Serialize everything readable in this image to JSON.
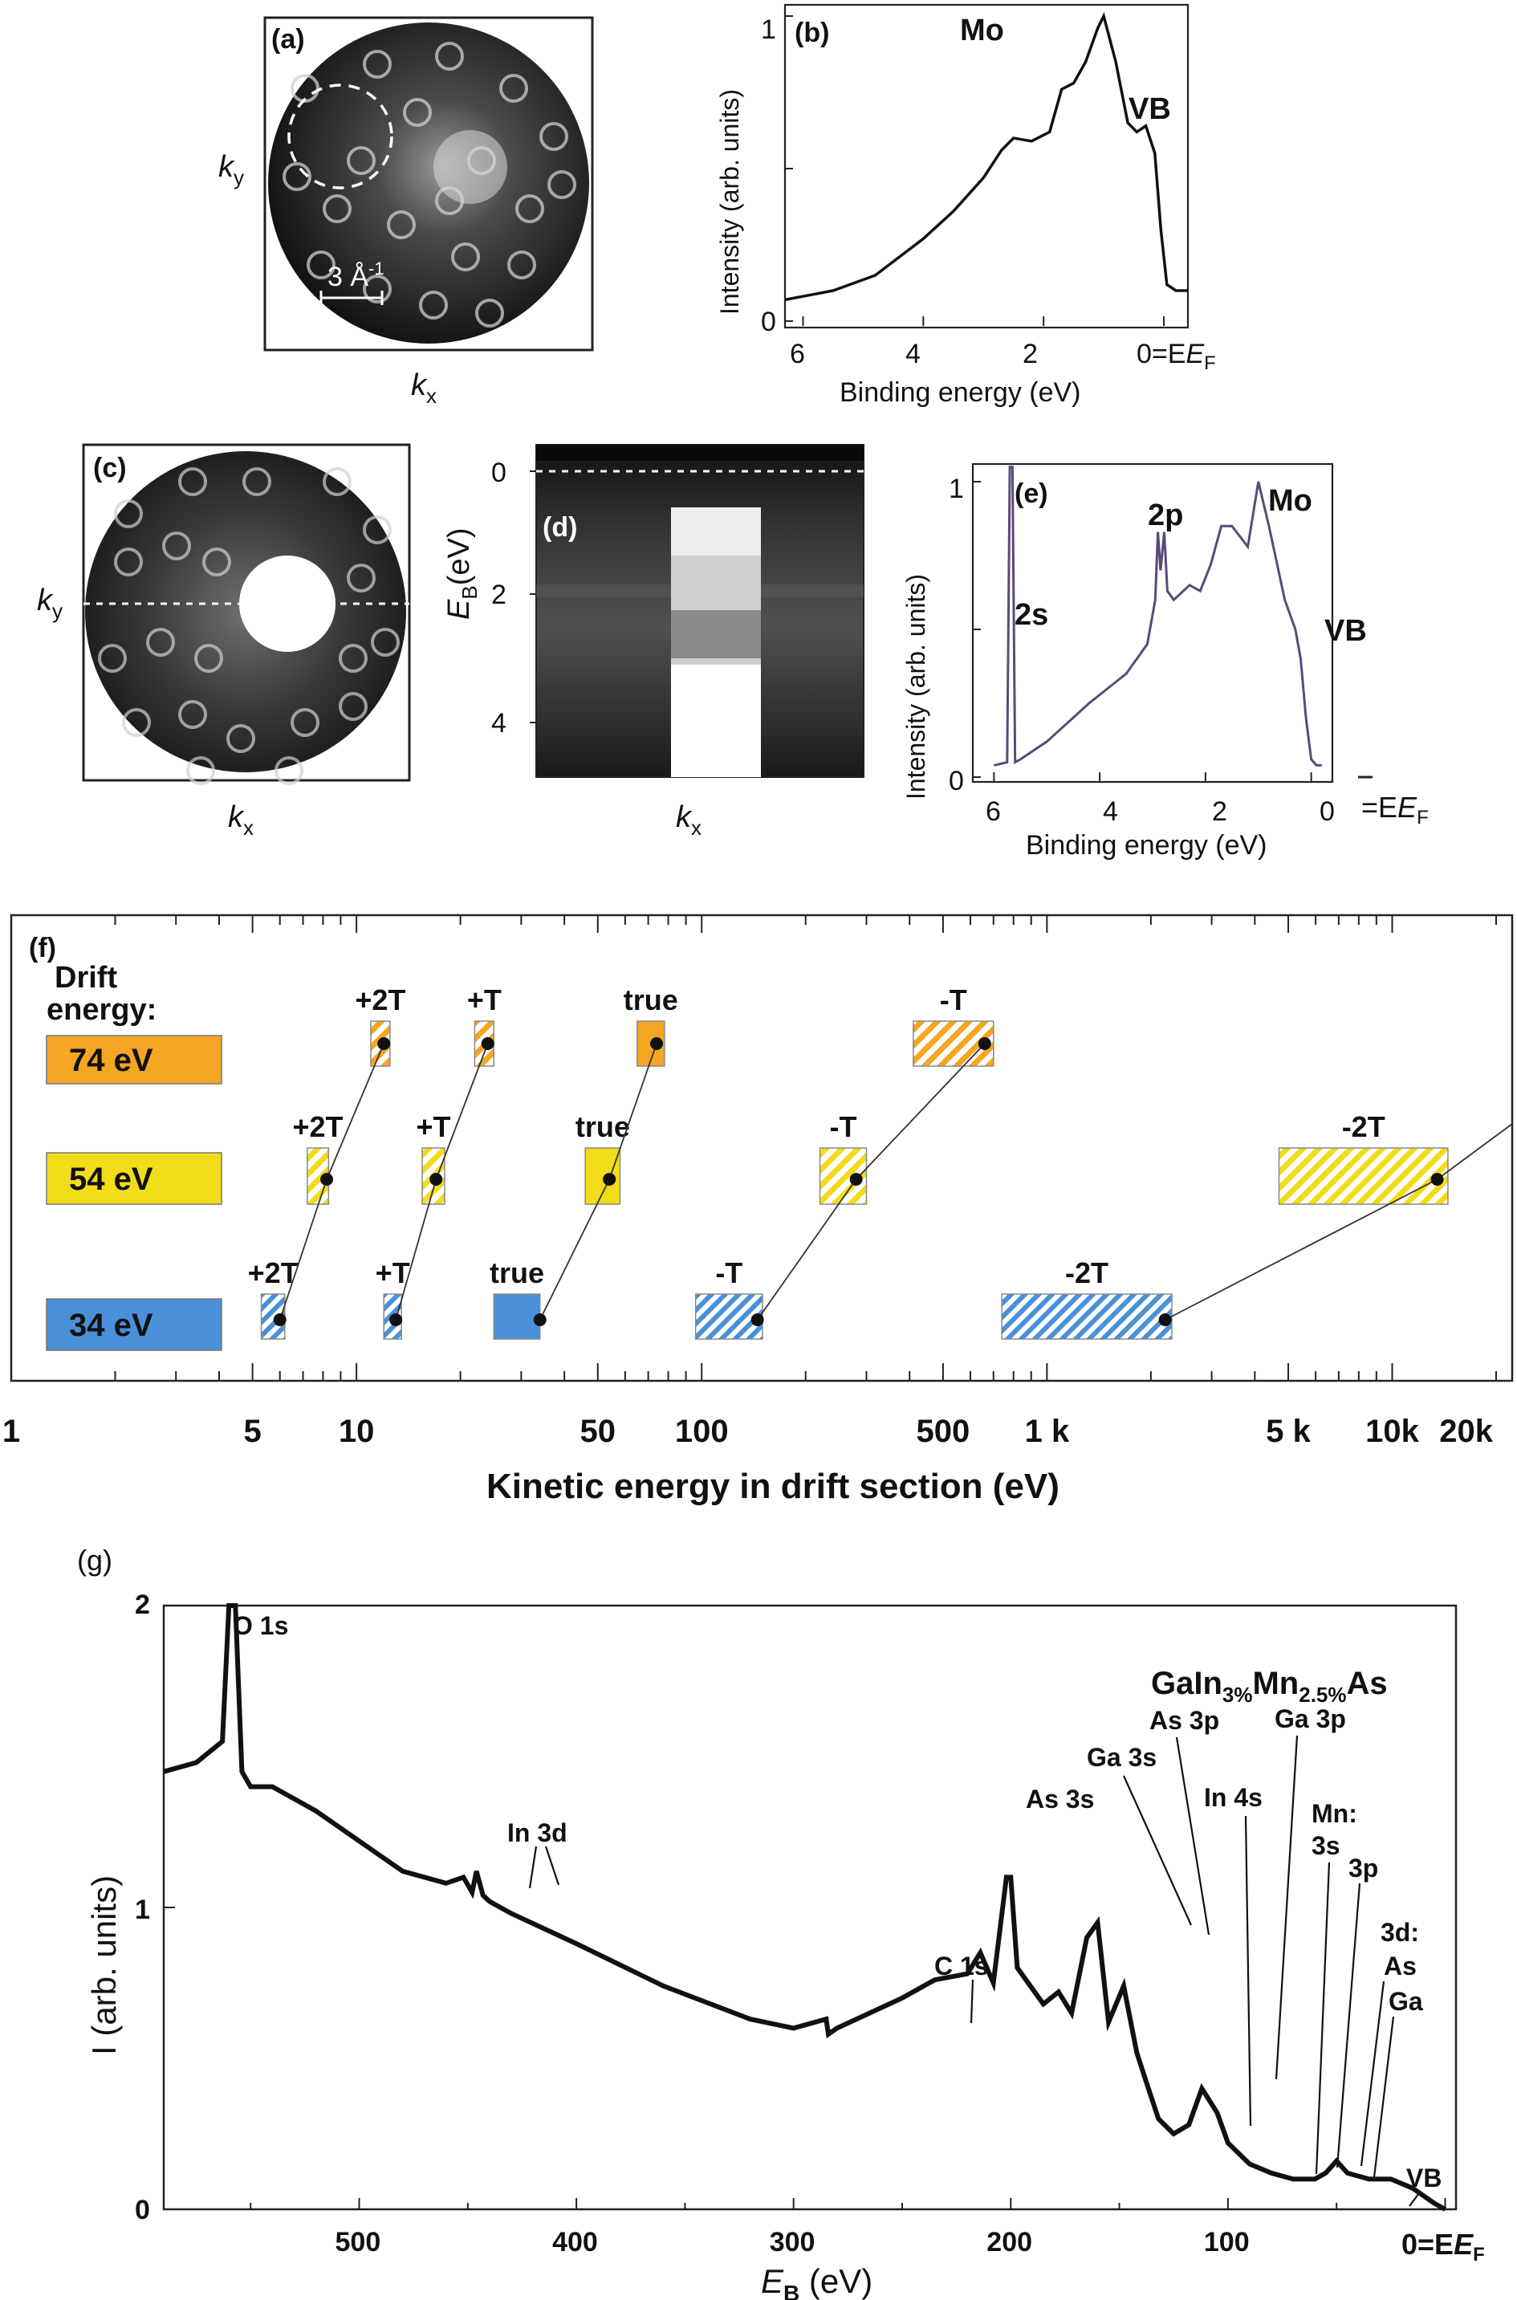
{
  "panels": {
    "a": {
      "label": "(a)",
      "kx": "k",
      "kx_sub": "x",
      "ky": "k",
      "ky_sub": "y",
      "scale": "3 Å",
      "scale_sup": "-1"
    },
    "b": {
      "label": "(b)",
      "peak_mo": "Mo",
      "peak_vb": "VB"
    },
    "c": {
      "label": "(c)",
      "kx": "k",
      "kx_sub": "x",
      "ky": "k",
      "ky_sub": "y"
    },
    "d": {
      "label": "(d)",
      "ylabel": "E",
      "ylabel_sub": "B",
      "ylabel_rest": "(eV)",
      "yticks": [
        "0",
        "2",
        "4"
      ],
      "xlabel": "k",
      "xlabel_sub": "x"
    },
    "e": {
      "label": "(e)",
      "peak_2s": "2s",
      "peak_2p": "2p",
      "peak_mo": "Mo",
      "peak_vb": "VB"
    },
    "f": {
      "label": "(f)",
      "drift_title_1": "Drift",
      "drift_title_2": "energy:",
      "xlabel": "Kinetic energy in drift section (eV)",
      "xticks": [
        "1",
        "5",
        "10",
        "50",
        "100",
        "500",
        "1 k",
        "5 k",
        "10k",
        "20k"
      ],
      "rows": [
        {
          "energy": "74 eV",
          "color": "#f5a623"
        },
        {
          "energy": "54 eV",
          "color": "#f2dc1a"
        },
        {
          "energy": "34 eV",
          "color": "#4a90d9"
        }
      ],
      "box_labels": {
        "p2": "+2T",
        "p1": "+T",
        "t": "true",
        "m1": "-T",
        "m2": "-2T"
      }
    },
    "g": {
      "label": "(g)",
      "ylabel": "I (arb. units)",
      "xlabel": "E",
      "xlabel_sub": "B",
      "xlabel_rest": " (eV)",
      "ef": "0=E",
      "ef_sub": "F",
      "formula": "GaIn",
      "formula_sub1": "3%",
      "formula_mid": "Mn",
      "formula_sub2": "2.5%",
      "formula_end": "As",
      "yticks": [
        "0",
        "1",
        "2"
      ],
      "xticks": [
        "500",
        "400",
        "300",
        "200",
        "100"
      ],
      "peaks": {
        "o1s": "O 1s",
        "in3d": "In 3d",
        "c1s": "C 1s",
        "as3s": "As 3s",
        "ga3s": "Ga 3s",
        "as3p": "As 3p",
        "in4s": "In 4s",
        "ga3p": "Ga 3p",
        "mn": "Mn:",
        "mn3s": "3s",
        "mn3p": "3p",
        "d3": "3d:",
        "as": "As",
        "ga": "Ga",
        "vb": "VB"
      }
    }
  },
  "shared": {
    "intensity_label": "Intensity (arb. units)",
    "binding_label": "Binding energy (eV)",
    "ef_text": "0=E",
    "ef_sub": "F",
    "ef_text_e": "=E",
    "b_xticks": [
      "6",
      "4",
      "2"
    ],
    "b_yticks": [
      "0",
      "1"
    ],
    "e_xticks": [
      "6",
      "4",
      "2",
      "0"
    ],
    "e_yticks": [
      "0",
      "1"
    ]
  },
  "chart_data": [
    {
      "type": "line",
      "panel": "b",
      "xlabel": "Binding energy (eV)",
      "ylabel": "Intensity (arb. units)",
      "xlim": [
        6.3,
        -0.4
      ],
      "ylim": [
        0,
        1
      ],
      "x": [
        6.3,
        5.5,
        4.8,
        4.0,
        3.5,
        3.0,
        2.7,
        2.5,
        2.2,
        1.9,
        1.7,
        1.5,
        1.3,
        1.1,
        1.0,
        0.8,
        0.6,
        0.45,
        0.3,
        0.15,
        0.05,
        -0.05,
        -0.2,
        -0.4
      ],
      "y": [
        0.07,
        0.1,
        0.15,
        0.27,
        0.36,
        0.47,
        0.56,
        0.6,
        0.59,
        0.62,
        0.76,
        0.78,
        0.85,
        0.96,
        1.0,
        0.85,
        0.65,
        0.62,
        0.64,
        0.55,
        0.3,
        0.12,
        0.1,
        0.1
      ]
    },
    {
      "type": "line",
      "panel": "e",
      "xlabel": "Binding energy (eV)",
      "ylabel": "Intensity (arb. units)",
      "xlim": [
        6.4,
        -0.4
      ],
      "ylim": [
        0,
        1
      ],
      "x": [
        6.0,
        5.75,
        5.7,
        5.65,
        5.6,
        5.5,
        5.0,
        4.2,
        3.5,
        3.1,
        2.95,
        2.9,
        2.85,
        2.78,
        2.72,
        2.6,
        2.3,
        2.1,
        1.9,
        1.7,
        1.5,
        1.2,
        1.0,
        0.8,
        0.5,
        0.3,
        0.2,
        0.1,
        0.0,
        -0.1,
        -0.2
      ],
      "y": [
        0.04,
        0.05,
        1.05,
        1.05,
        0.05,
        0.06,
        0.12,
        0.25,
        0.35,
        0.45,
        0.6,
        0.83,
        0.7,
        0.83,
        0.63,
        0.6,
        0.65,
        0.63,
        0.72,
        0.85,
        0.85,
        0.78,
        1.0,
        0.85,
        0.6,
        0.5,
        0.4,
        0.2,
        0.06,
        0.04,
        0.04
      ]
    },
    {
      "type": "scatter",
      "panel": "f",
      "xlabel": "Kinetic energy in drift section (eV)",
      "xscale": "log",
      "xlim": [
        1,
        20000
      ],
      "series": [
        {
          "name": "74 eV",
          "labels": [
            "+2T",
            "+T",
            "true",
            "-T"
          ],
          "x": [
            12,
            24,
            74,
            660
          ],
          "box_left": [
            11,
            22,
            65,
            410
          ],
          "box_right": [
            12.5,
            25,
            78,
            700
          ]
        },
        {
          "name": "54 eV",
          "labels": [
            "+2T",
            "+T",
            "true",
            "-T",
            "-2T"
          ],
          "x": [
            8.2,
            17,
            54,
            280,
            13500
          ],
          "box_left": [
            7.2,
            15.5,
            46,
            220,
            4700
          ],
          "box_right": [
            8.3,
            18,
            58,
            300,
            14500
          ]
        },
        {
          "name": "34 eV",
          "labels": [
            "+2T",
            "+T",
            "true",
            "-T",
            "-2T"
          ],
          "x": [
            6,
            13,
            34,
            145,
            2200
          ],
          "box_left": [
            5.3,
            12,
            25,
            96,
            740
          ],
          "box_right": [
            6.2,
            13.5,
            34,
            150,
            2300
          ]
        }
      ]
    },
    {
      "type": "line",
      "panel": "g",
      "xlabel": "E_B (eV)",
      "ylabel": "I (arb. units)",
      "xlim": [
        590,
        -5
      ],
      "ylim": [
        0,
        2
      ],
      "x": [
        590,
        575,
        563,
        560,
        557,
        554,
        550,
        540,
        520,
        500,
        480,
        460,
        452,
        448,
        446,
        443,
        440,
        430,
        400,
        360,
        320,
        300,
        285,
        284,
        280,
        250,
        235,
        220,
        214,
        208,
        202,
        200,
        197,
        185,
        178,
        172,
        165,
        160,
        155,
        148,
        142,
        138,
        132,
        125,
        118,
        112,
        105,
        100,
        90,
        80,
        70,
        60,
        55,
        50,
        45,
        35,
        25,
        15,
        5,
        0
      ],
      "y": [
        1.45,
        1.48,
        1.55,
        2.0,
        2.0,
        1.45,
        1.4,
        1.4,
        1.32,
        1.22,
        1.12,
        1.08,
        1.1,
        1.05,
        1.12,
        1.04,
        1.02,
        0.98,
        0.88,
        0.74,
        0.63,
        0.6,
        0.63,
        0.58,
        0.6,
        0.7,
        0.76,
        0.78,
        0.85,
        0.75,
        1.1,
        1.1,
        0.8,
        0.68,
        0.72,
        0.65,
        0.9,
        0.95,
        0.62,
        0.74,
        0.52,
        0.43,
        0.3,
        0.25,
        0.28,
        0.4,
        0.32,
        0.22,
        0.15,
        0.12,
        0.1,
        0.1,
        0.12,
        0.16,
        0.12,
        0.1,
        0.1,
        0.07,
        0.02,
        0.0
      ]
    }
  ]
}
